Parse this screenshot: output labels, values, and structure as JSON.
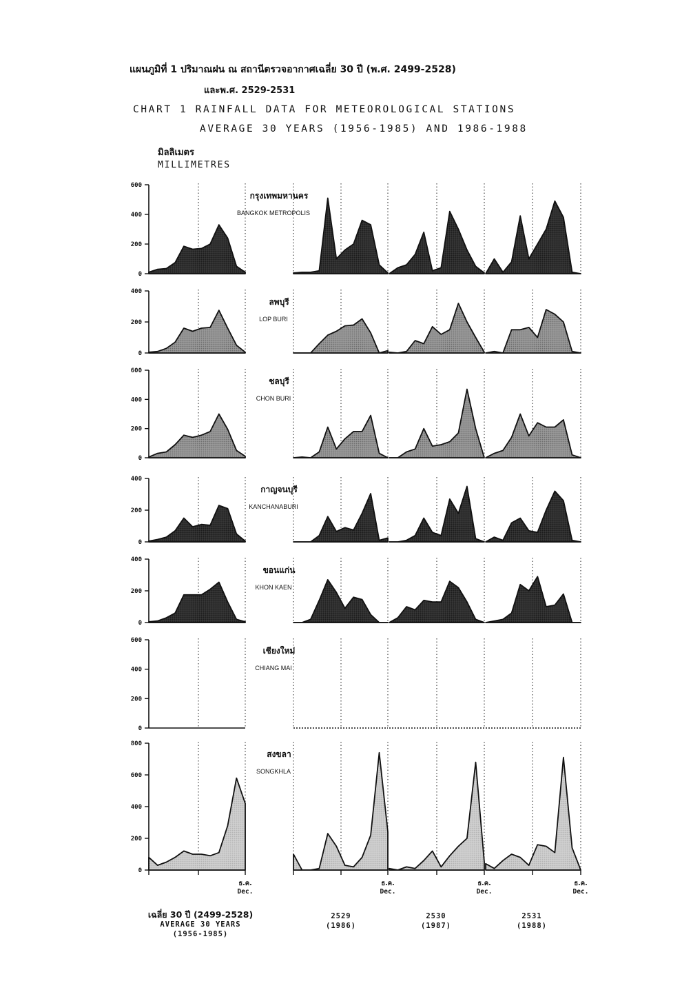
{
  "header": {
    "title_thai_1": "แผนภูมิที่  1  ปริมาณฝน ณ สถานีตรวจอากาศเฉลี่ย  30 ปี  (พ.ศ. 2499-2528)",
    "title_thai_2": "และพ.ศ. 2529-2531",
    "title_en_1": "CHART 1 RAINFALL DATA FOR METEOROLOGICAL STATIONS",
    "title_en_2": "AVERAGE 30 YEARS (1956-1985) AND 1986-1988",
    "unit_thai": "มิลลิเมตร",
    "unit_en": "MILLIMETRES"
  },
  "footer": {
    "avg_thai": "เฉลี่ย 30 ปี (2499-2528)",
    "avg_en_1": "AVERAGE 30 YEARS",
    "avg_en_2": "(1956-1985)",
    "y1986_th": "2529",
    "y1986_en": "(1986)",
    "y1987_th": "2530",
    "y1987_en": "(1987)",
    "y1988_th": "2531",
    "y1988_en": "(1988)",
    "dec_thai": "ธ.ค.",
    "dec_en": "Dec."
  },
  "chart_data": {
    "type": "area",
    "xlabel": "",
    "ylabel": "MILLIMETRES",
    "x_groups": [
      "AVERAGE 30 YEARS (1956-1985)",
      "1986",
      "1987",
      "1988"
    ],
    "months_per_group": 12,
    "colors": {
      "dark": "#1c1c1c",
      "medium": "#6e6e6e",
      "light": "#b4b4b4"
    },
    "stations": [
      {
        "name_thai": "กรุงเทพมหานคร",
        "name_en": "BANGKOK METROPOLIS",
        "ylim": [
          0,
          600
        ],
        "yticks": [
          "600",
          "400",
          "200",
          "0"
        ],
        "shade": "dark",
        "average": [
          10,
          30,
          35,
          75,
          185,
          165,
          170,
          200,
          330,
          240,
          50,
          10
        ],
        "y1986": [
          5,
          10,
          10,
          20,
          510,
          100,
          160,
          200,
          360,
          330,
          60,
          5
        ],
        "y1987": [
          0,
          40,
          60,
          130,
          280,
          20,
          40,
          420,
          300,
          160,
          50,
          5
        ],
        "y1988": [
          0,
          100,
          10,
          80,
          390,
          100,
          200,
          300,
          490,
          380,
          10,
          0
        ]
      },
      {
        "name_thai": "ลพบุรี",
        "name_en": "LOP BURI",
        "ylim": [
          0,
          400
        ],
        "yticks": [
          "400",
          "200",
          "0"
        ],
        "shade": "medium",
        "average": [
          5,
          10,
          30,
          70,
          160,
          140,
          160,
          165,
          275,
          160,
          50,
          5
        ],
        "y1986": [
          0,
          0,
          0,
          60,
          115,
          140,
          175,
          180,
          220,
          130,
          0,
          15
        ],
        "y1987": [
          5,
          0,
          10,
          80,
          60,
          170,
          120,
          150,
          320,
          200,
          100,
          5
        ],
        "y1988": [
          0,
          10,
          0,
          150,
          150,
          165,
          100,
          280,
          250,
          200,
          10,
          0
        ]
      },
      {
        "name_thai": "ชลบุรี",
        "name_en": "CHON BURI",
        "ylim": [
          0,
          600
        ],
        "yticks": [
          "600",
          "400",
          "200",
          "0"
        ],
        "shade": "medium",
        "average": [
          5,
          30,
          40,
          90,
          155,
          140,
          155,
          180,
          300,
          195,
          50,
          10
        ],
        "y1986": [
          0,
          5,
          0,
          40,
          210,
          60,
          130,
          180,
          180,
          290,
          30,
          0
        ],
        "y1987": [
          0,
          0,
          40,
          60,
          200,
          80,
          90,
          110,
          170,
          470,
          200,
          0
        ],
        "y1988": [
          0,
          30,
          50,
          140,
          300,
          150,
          240,
          210,
          210,
          260,
          20,
          0
        ]
      },
      {
        "name_thai": "กาญจนบุรี",
        "name_en": "KANCHANABURI",
        "ylim": [
          0,
          400
        ],
        "yticks": [
          "400",
          "200",
          "0"
        ],
        "shade": "dark",
        "average": [
          5,
          15,
          30,
          70,
          150,
          95,
          110,
          105,
          230,
          210,
          50,
          5
        ],
        "y1986": [
          0,
          0,
          0,
          40,
          160,
          65,
          90,
          75,
          180,
          305,
          10,
          25
        ],
        "y1987": [
          0,
          0,
          10,
          40,
          150,
          60,
          40,
          270,
          180,
          350,
          20,
          0
        ],
        "y1988": [
          0,
          30,
          10,
          120,
          150,
          70,
          60,
          200,
          320,
          260,
          10,
          0
        ]
      },
      {
        "name_thai": "ขอนแก่น",
        "name_en": "KHON KAEN",
        "ylim": [
          0,
          400
        ],
        "yticks": [
          "400",
          "200",
          "0"
        ],
        "shade": "dark",
        "average": [
          5,
          10,
          30,
          60,
          175,
          175,
          175,
          210,
          255,
          130,
          20,
          5
        ],
        "y1986": [
          0,
          0,
          20,
          140,
          270,
          190,
          90,
          160,
          145,
          50,
          0,
          0
        ],
        "y1987": [
          0,
          30,
          100,
          80,
          140,
          130,
          130,
          260,
          220,
          130,
          20,
          0
        ],
        "y1988": [
          0,
          10,
          20,
          60,
          240,
          200,
          290,
          100,
          110,
          180,
          0,
          0
        ]
      },
      {
        "name_thai": "เชียงใหม่",
        "name_en": "CHIANG MAI",
        "ylim": [
          0,
          600
        ],
        "yticks": [
          "600",
          "400",
          "200",
          "0"
        ],
        "shade": "none",
        "average": [
          0,
          0,
          0,
          0,
          0,
          0,
          0,
          0,
          0,
          0,
          0,
          0
        ],
        "y1986": [
          0,
          0,
          0,
          0,
          0,
          0,
          0,
          0,
          0,
          0,
          0,
          0
        ],
        "y1987": [
          0,
          0,
          0,
          0,
          0,
          0,
          0,
          0,
          0,
          0,
          0,
          0
        ],
        "y1988": [
          0,
          0,
          0,
          0,
          0,
          0,
          0,
          0,
          0,
          0,
          0,
          0
        ]
      },
      {
        "name_thai": "สงขลา",
        "name_en": "SONGKHLA",
        "ylim": [
          0,
          800
        ],
        "yticks": [
          "800",
          "600",
          "400",
          "200",
          "0"
        ],
        "shade": "light",
        "average": [
          80,
          30,
          50,
          80,
          120,
          100,
          100,
          90,
          110,
          280,
          580,
          420
        ],
        "y1986": [
          100,
          0,
          0,
          10,
          230,
          150,
          30,
          20,
          80,
          220,
          740,
          240
        ],
        "y1987": [
          10,
          0,
          20,
          10,
          60,
          120,
          20,
          90,
          150,
          200,
          680,
          50
        ],
        "y1988": [
          40,
          10,
          60,
          100,
          80,
          30,
          160,
          150,
          110,
          710,
          140,
          0
        ]
      }
    ]
  }
}
